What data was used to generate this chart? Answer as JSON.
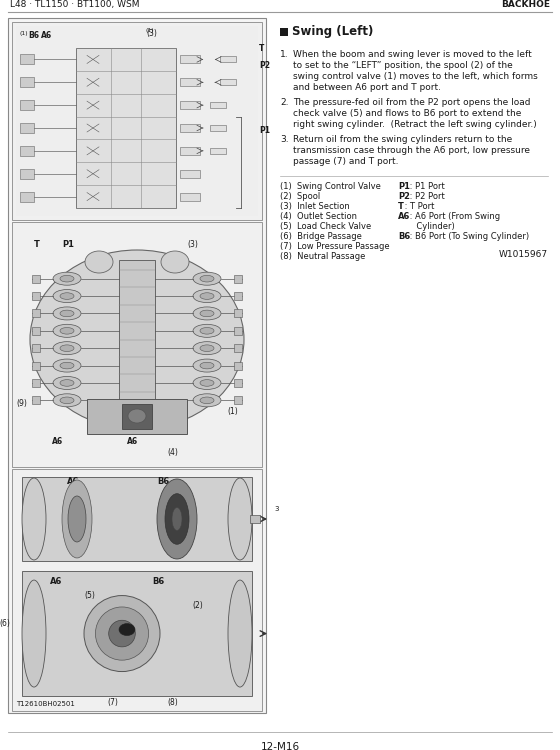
{
  "page_header_left": "L48 · TL1150 · BT1100, WSM",
  "page_header_right": "BACKHOE",
  "page_footer": "12-M16",
  "section_title": "Swing (Left)",
  "para1_num": "1.",
  "para1_line1": "When the boom and swing lever is moved to the left",
  "para1_line2": "to set to the “LEFT” position, the spool (2) of the",
  "para1_line3": "swing control valve (1) moves to the left, which forms",
  "para1_line4": "and between A6 port and T port.",
  "para2_num": "2.",
  "para2_line1": "The pressure-fed oil from the P2 port opens the load",
  "para2_line2": "check valve (5) and flows to B6 port to extend the",
  "para2_line3": "right swing cylinder.  (Retract the left swing cylinder.)",
  "para3_num": "3.",
  "para3_line1": "Return oil from the swing cylinders return to the",
  "para3_line2": "transmission case through the A6 port, low pressure",
  "para3_line3": "passage (7) and T port.",
  "leg_l1": "(1)  Swing Control Valve",
  "leg_l2": "(2)  Spool",
  "leg_l3": "(3)  Inlet Section",
  "leg_l4": "(4)  Outlet Section",
  "leg_l5": "(5)  Load Check Valve",
  "leg_l6": "(6)  Bridge Passage",
  "leg_l7": "(7)  Low Pressure Passage",
  "leg_l8": "(8)  Neutral Passage",
  "leg_r1b": "P1",
  "leg_r1r": " : P1 Port",
  "leg_r2b": "P2",
  "leg_r2r": " : P2 Port",
  "leg_r3b": "T",
  "leg_r3r": " : T Port",
  "leg_r4b": "A6",
  "leg_r4r": " : A6 Port (From Swing",
  "leg_r4r2": "       Cylinder)",
  "leg_r5b": "B6",
  "leg_r5r": " : B6 Port (To Swing Cylinder)",
  "ref_number": "W1015967",
  "figure_label": "T12610BH02501",
  "bg_color": "#ffffff",
  "text_color": "#1a1a1a",
  "diagram_border": "#888888",
  "gray_light": "#d8d8d8",
  "gray_mid": "#b8b8b8",
  "gray_dark": "#888888",
  "gray_darker": "#606060",
  "black": "#1a1a1a"
}
